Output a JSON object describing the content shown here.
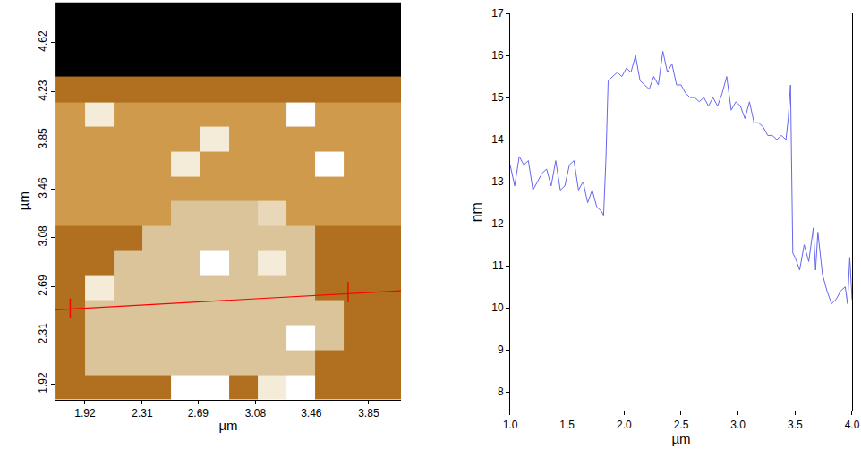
{
  "chart_data": [
    {
      "type": "heatmap",
      "x_label": "µm",
      "y_label": "µm",
      "xlim": [
        1.72,
        4.07
      ],
      "ylim": [
        1.8,
        4.94
      ],
      "xticks": [
        1.92,
        2.31,
        2.69,
        3.08,
        3.46,
        3.85
      ],
      "yticks": [
        1.92,
        2.31,
        2.69,
        3.08,
        3.46,
        3.85,
        4.23,
        4.62
      ],
      "grid": false,
      "x": [
        1.82,
        2.02,
        2.21,
        2.41,
        2.6,
        2.8,
        3.0,
        3.19,
        3.39,
        3.58,
        3.78,
        3.98
      ],
      "y": [
        1.9,
        2.09,
        2.29,
        2.49,
        2.68,
        2.88,
        3.07,
        3.27,
        3.47,
        3.66,
        3.86,
        4.05,
        4.25,
        4.45,
        4.64,
        4.84
      ],
      "zlim": [
        0,
        10
      ],
      "cells": [
        [
          5,
          5,
          5,
          5,
          10,
          10,
          5,
          9,
          10,
          5,
          5,
          5
        ],
        [
          5,
          7,
          7,
          7,
          7,
          7,
          7,
          7,
          7,
          5,
          5,
          5
        ],
        [
          5,
          7,
          7,
          7,
          7,
          7,
          7,
          7,
          10,
          7,
          5,
          5
        ],
        [
          5,
          7,
          7,
          7,
          7,
          7,
          7,
          7,
          7,
          7,
          5,
          5
        ],
        [
          5,
          9,
          7,
          7,
          7,
          7,
          7,
          7,
          7,
          5,
          5,
          5
        ],
        [
          5,
          5,
          7,
          7,
          7,
          10,
          7,
          9,
          7,
          5,
          5,
          5
        ],
        [
          5,
          5,
          5,
          7,
          7,
          7,
          7,
          7,
          7,
          5,
          5,
          5
        ],
        [
          6,
          6,
          6,
          6,
          7,
          7,
          7,
          8,
          6,
          6,
          6,
          6
        ],
        [
          6,
          6,
          6,
          6,
          6,
          6,
          6,
          6,
          6,
          6,
          6,
          6
        ],
        [
          6,
          6,
          6,
          6,
          9,
          6,
          6,
          6,
          6,
          10,
          6,
          6
        ],
        [
          6,
          6,
          6,
          6,
          6,
          9,
          6,
          6,
          6,
          6,
          6,
          6
        ],
        [
          6,
          9,
          6,
          6,
          6,
          6,
          6,
          6,
          10,
          6,
          6,
          6
        ],
        [
          5,
          5,
          5,
          5,
          5,
          5,
          5,
          5,
          5,
          5,
          5,
          5
        ],
        [
          0,
          0,
          0,
          0,
          0,
          0,
          0,
          0,
          0,
          0,
          0,
          0
        ],
        [
          0,
          0,
          0,
          0,
          0,
          0,
          0,
          0,
          0,
          0,
          0,
          0
        ],
        [
          0,
          0,
          0,
          0,
          0,
          0,
          0,
          0,
          0,
          0,
          0,
          0
        ]
      ],
      "series": [
        {
          "type": "line",
          "color": "#ff0000",
          "x": [
            1.72,
            4.07
          ],
          "y": [
            2.51,
            2.66
          ]
        },
        {
          "type": "scatter",
          "marker": "line-ns",
          "color": "#ff0000",
          "x": [
            1.82,
            3.71
          ],
          "y": [
            2.52,
            2.65
          ]
        }
      ]
    },
    {
      "type": "line",
      "x_label": "µm",
      "y_label": "nm",
      "xlim": [
        1.0,
        4.0
      ],
      "ylim": [
        7.55,
        17
      ],
      "xticks": [
        {
          "value": 1,
          "label": "1.0"
        },
        {
          "value": 1.5,
          "label": "1.5"
        },
        {
          "value": 2,
          "label": "2.0"
        },
        {
          "value": 2.5,
          "label": "2.5"
        },
        {
          "value": 3,
          "label": "3.0"
        },
        {
          "value": 3.5,
          "label": "3.5"
        },
        {
          "value": 4,
          "label": "4.0"
        }
      ],
      "yticks": [
        8,
        9,
        10,
        11,
        12,
        13,
        14,
        15,
        16,
        17
      ],
      "grid": false,
      "color": "#6666ee",
      "x": [
        1.0,
        1.04,
        1.08,
        1.12,
        1.16,
        1.2,
        1.24,
        1.28,
        1.32,
        1.36,
        1.4,
        1.44,
        1.48,
        1.52,
        1.56,
        1.6,
        1.64,
        1.68,
        1.72,
        1.76,
        1.8,
        1.82,
        1.84,
        1.86,
        1.9,
        1.94,
        1.98,
        2.02,
        2.06,
        2.1,
        2.14,
        2.18,
        2.22,
        2.26,
        2.3,
        2.34,
        2.38,
        2.42,
        2.46,
        2.5,
        2.54,
        2.58,
        2.62,
        2.66,
        2.7,
        2.74,
        2.78,
        2.82,
        2.86,
        2.9,
        2.94,
        2.98,
        3.02,
        3.06,
        3.1,
        3.14,
        3.18,
        3.22,
        3.26,
        3.3,
        3.34,
        3.38,
        3.42,
        3.44,
        3.46,
        3.48,
        3.5,
        3.54,
        3.58,
        3.62,
        3.66,
        3.68,
        3.7,
        3.74,
        3.78,
        3.82,
        3.86,
        3.9,
        3.94,
        3.96,
        3.98,
        4.0
      ],
      "values": [
        13.4,
        12.9,
        13.6,
        13.4,
        13.5,
        12.8,
        13.0,
        13.2,
        13.3,
        12.9,
        13.5,
        12.8,
        12.9,
        13.4,
        13.5,
        12.8,
        13.0,
        12.5,
        12.8,
        12.4,
        12.3,
        12.2,
        13.5,
        15.4,
        15.5,
        15.6,
        15.5,
        15.7,
        15.6,
        16.0,
        15.4,
        15.3,
        15.2,
        15.5,
        15.3,
        16.1,
        15.6,
        15.8,
        15.3,
        15.3,
        15.1,
        15.0,
        15.0,
        14.9,
        15.0,
        14.8,
        15.0,
        14.8,
        15.1,
        15.5,
        14.7,
        14.9,
        14.8,
        14.5,
        14.9,
        14.4,
        14.4,
        14.3,
        14.1,
        14.1,
        14.0,
        14.1,
        14.0,
        14.5,
        15.3,
        11.3,
        11.2,
        10.9,
        11.5,
        11.1,
        11.9,
        10.9,
        11.8,
        10.8,
        10.4,
        10.1,
        10.2,
        10.4,
        10.5,
        10.1,
        11.2,
        10.2
      ]
    }
  ]
}
